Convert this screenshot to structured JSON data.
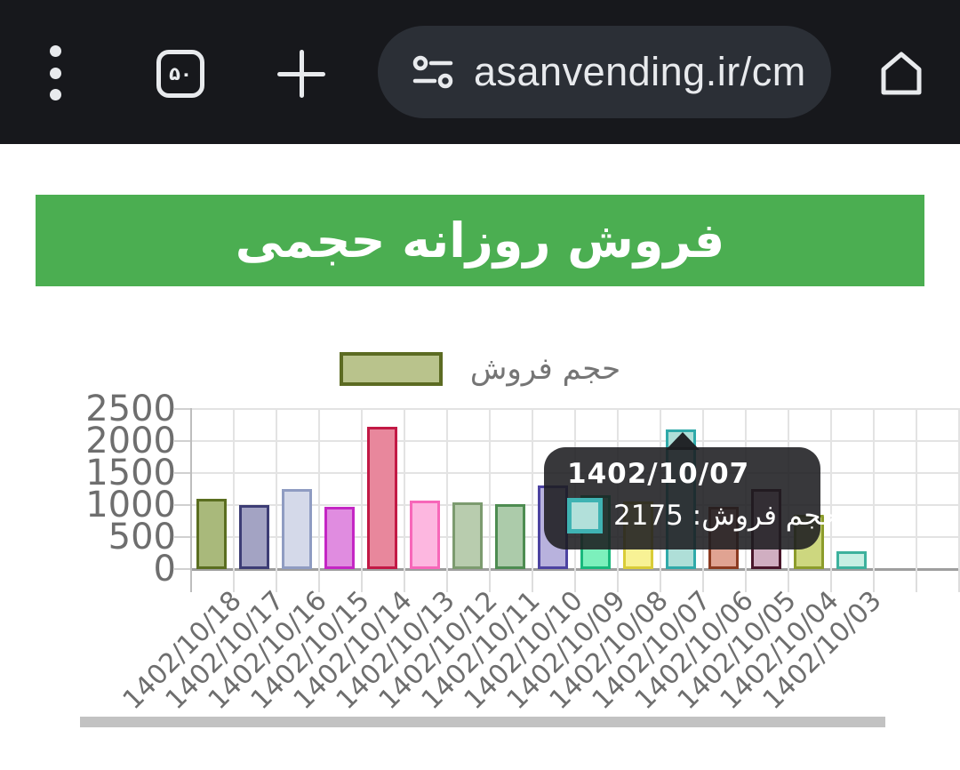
{
  "browser": {
    "url": "asanvending.ir/cm",
    "tab_count": "۵۰",
    "menu_icon": "kebab-menu-icon",
    "site_settings_icon": "tune-icon",
    "home_icon": "home-icon"
  },
  "banner": {
    "title": "فروش روزانه حجمی",
    "bg_color": "#4bae51"
  },
  "legend": {
    "label": "حجم فروش",
    "fill": "#b9c38c",
    "border": "#5c6b22"
  },
  "tooltip": {
    "title": "1402/10/07",
    "text": "حجم فروش: 2175",
    "swatch_fill": "#b2e0da",
    "swatch_border": "#3fb3b3"
  },
  "chart_data": {
    "type": "bar",
    "title": "فروش روزانه حجمی",
    "legend_label": "حجم فروش",
    "legend_position": "top",
    "grid": true,
    "xlabel": "",
    "ylabel": "",
    "ylim": [
      0,
      2500
    ],
    "yticks": [
      0,
      500,
      1000,
      1500,
      2000,
      2500
    ],
    "categories": [
      "1402/10/18",
      "1402/10/17",
      "1402/10/16",
      "1402/10/15",
      "1402/10/14",
      "1402/10/13",
      "1402/10/12",
      "1402/10/11",
      "1402/10/10",
      "1402/10/09",
      "1402/10/08",
      "1402/10/07",
      "1402/10/06",
      "1402/10/05",
      "1402/10/04",
      "1402/10/03"
    ],
    "values": [
      1100,
      1000,
      1250,
      975,
      2220,
      1075,
      1040,
      1010,
      1300,
      1150,
      1050,
      2175,
      970,
      1250,
      850,
      280
    ],
    "highlighted_index": 11,
    "highlighted_value": 2175,
    "bar_colors": [
      {
        "fill": "#a9b97b",
        "border": "#5a6e20"
      },
      {
        "fill": "#a3a3c3",
        "border": "#3d3d75"
      },
      {
        "fill": "#d4d9e9",
        "border": "#8f9cc2"
      },
      {
        "fill": "#e08ce0",
        "border": "#c426c4"
      },
      {
        "fill": "#e8879c",
        "border": "#c21945"
      },
      {
        "fill": "#fdb7e0",
        "border": "#f767b9"
      },
      {
        "fill": "#b8ccae",
        "border": "#7c9b6f"
      },
      {
        "fill": "#accbaa",
        "border": "#4d8c51"
      },
      {
        "fill": "#b8b2dd",
        "border": "#4c43a1"
      },
      {
        "fill": "#7cf0bc",
        "border": "#18b87c"
      },
      {
        "fill": "#f8f295",
        "border": "#d9cc38"
      },
      {
        "fill": "#afdfd8",
        "border": "#2fa9a9"
      },
      {
        "fill": "#e0a392",
        "border": "#8c3a20"
      },
      {
        "fill": "#d0aec1",
        "border": "#49162a"
      },
      {
        "fill": "#cdd77f",
        "border": "#8c9c2b"
      },
      {
        "fill": "#c7efe3",
        "border": "#3db19d"
      }
    ]
  }
}
